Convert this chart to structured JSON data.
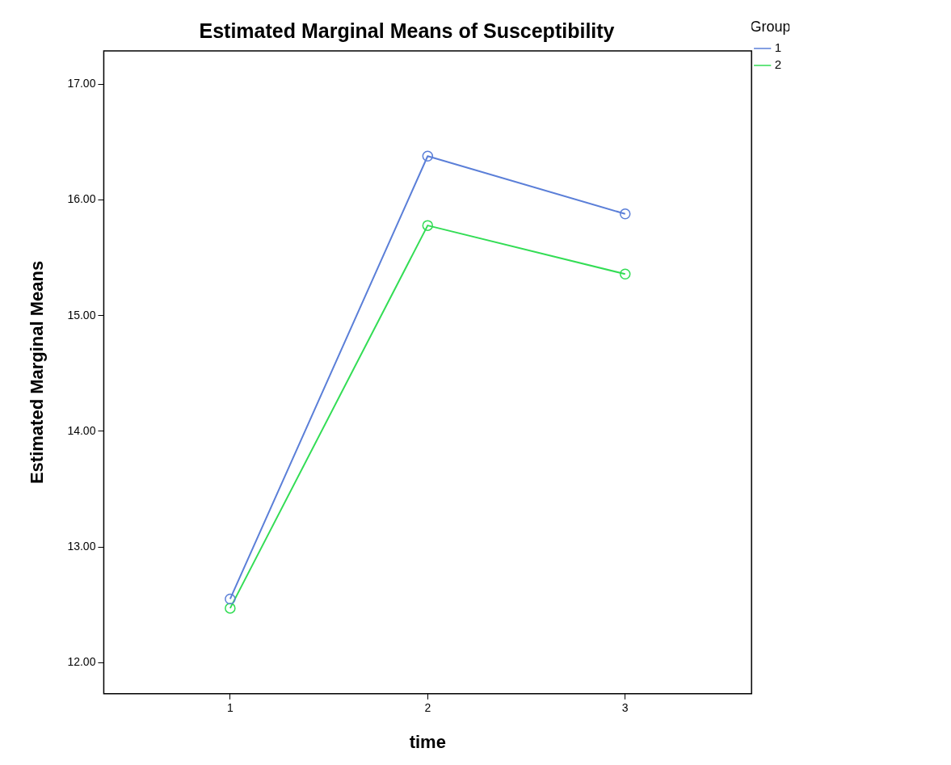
{
  "chart_data": {
    "type": "line",
    "title": "Estimated Marginal Means of Susceptibility",
    "xlabel": "time",
    "ylabel": "Estimated Marginal Means",
    "legend_title": "Group",
    "x": [
      1,
      2,
      3
    ],
    "xlim": [
      0.36,
      3.64
    ],
    "xticks": [
      1,
      2,
      3
    ],
    "ylim": [
      11.73,
      17.29
    ],
    "yticks": [
      {
        "value": 12,
        "label": "12.00"
      },
      {
        "value": 13,
        "label": "13.00"
      },
      {
        "value": 14,
        "label": "14.00"
      },
      {
        "value": 15,
        "label": "15.00"
      },
      {
        "value": 16,
        "label": "16.00"
      },
      {
        "value": 17,
        "label": "17.00"
      }
    ],
    "series": [
      {
        "name": "1",
        "color": "#5b7fd8",
        "values": [
          12.55,
          16.38,
          15.88
        ]
      },
      {
        "name": "2",
        "color": "#33dd55",
        "values": [
          12.47,
          15.78,
          15.36
        ]
      }
    ],
    "grid": false,
    "legend": "top right",
    "marker": "circle",
    "line_style": "solid"
  }
}
